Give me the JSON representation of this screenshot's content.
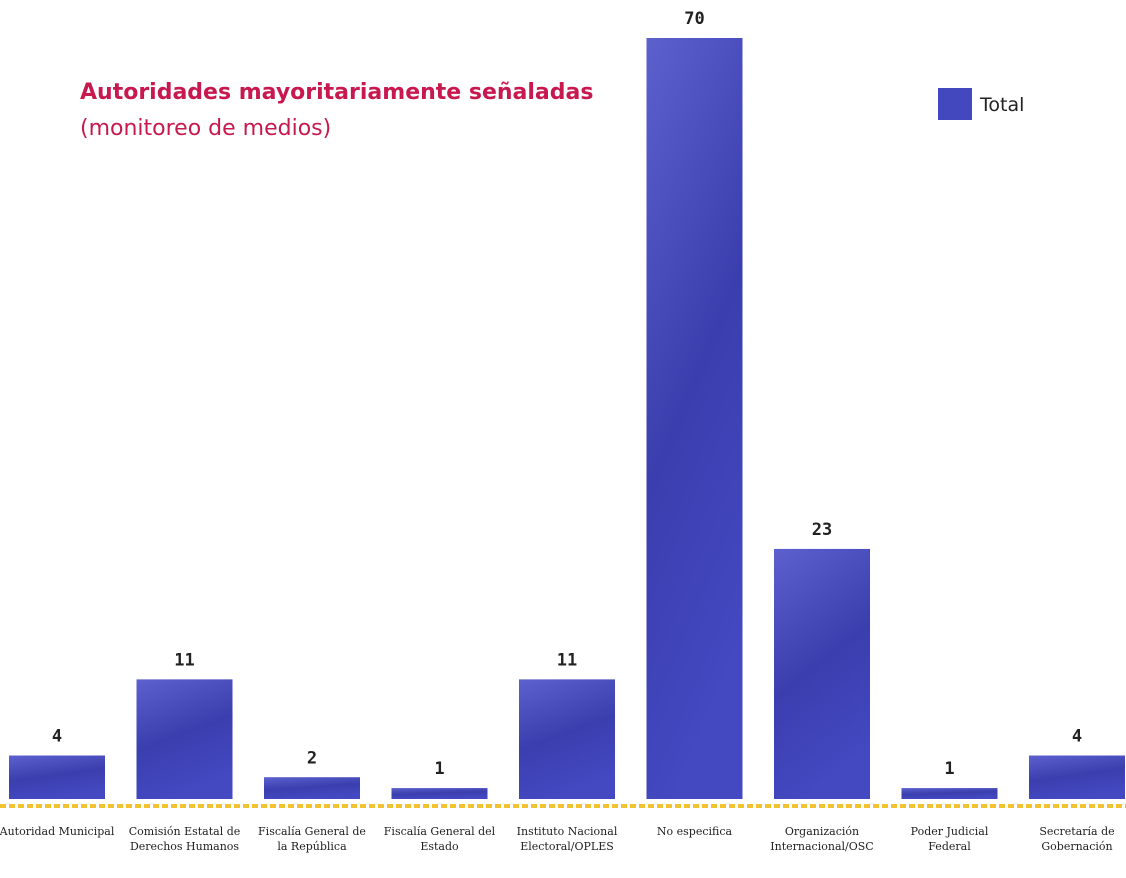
{
  "chart_data": {
    "type": "bar",
    "title": "Autoridades mayoritariamente señaladas",
    "subtitle": "(monitoreo de medios)",
    "categories": [
      "Autoridad Municipal",
      "Comisión Estatal de Derechos Humanos",
      "Fiscalía General de la República",
      "Fiscalía General del Estado",
      "Instituto Nacional Electoral/OPLES",
      "No especifica",
      "Organización Internacional/OSC",
      "Poder Judicial Federal",
      "Secretaría de Gobernación"
    ],
    "series": [
      {
        "name": "Total",
        "color": "#4448bf",
        "values": [
          4,
          11,
          2,
          1,
          11,
          70,
          23,
          1,
          4
        ]
      }
    ]
  }
}
